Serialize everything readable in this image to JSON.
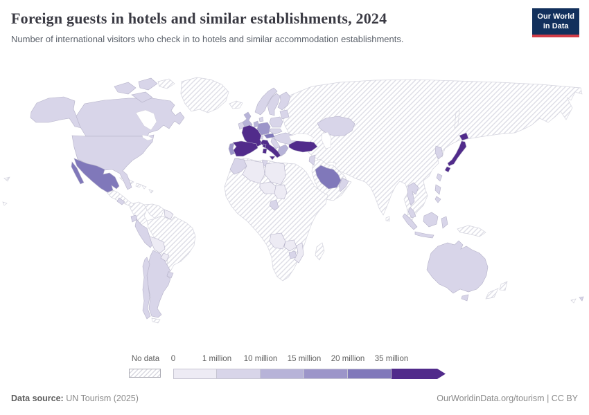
{
  "header": {
    "title": "Foreign guests in hotels and similar establishments, 2024",
    "subtitle": "Number of international visitors who check in to hotels and similar accommodation establishments.",
    "logo": {
      "line1": "Our World",
      "line2": "in Data",
      "bg_color": "#12305c",
      "accent_color": "#d23c47"
    }
  },
  "legend": {
    "no_data_label": "No data",
    "tick_labels": [
      "0",
      "1 million",
      "10 million",
      "15 million",
      "20 million",
      "35 million"
    ],
    "bin_colors": [
      "#edebf4",
      "#d8d5e9",
      "#b7b3d8",
      "#9c95c9",
      "#8078ba",
      "#512b8b"
    ],
    "no_data_pattern": "diagonal-hatch"
  },
  "footer": {
    "source_label": "Data source:",
    "source_value": "UN Tourism (2025)",
    "right_text": "OurWorldinData.org/tourism | CC BY"
  },
  "chart_data": {
    "type": "choropleth",
    "title": "Foreign guests in hotels and similar establishments, 2024",
    "unit": "international visitors checking in to hotels and similar establishments",
    "legend_position": "bottom",
    "bins": [
      {
        "label": "0-1 million",
        "color": "#edebf4"
      },
      {
        "label": "1-10 million",
        "color": "#d8d5e9"
      },
      {
        "label": "10-15 million",
        "color": "#b7b3d8"
      },
      {
        "label": "15-20 million",
        "color": "#9c95c9"
      },
      {
        "label": "20-35 million",
        "color": "#8078ba"
      },
      {
        "label": "35 million and over",
        "color": "#512b8b"
      },
      {
        "label": "No data",
        "color": "hatched"
      }
    ],
    "countries_by_bin": {
      "35_million_plus": [
        "Spain",
        "France",
        "Italy",
        "Turkey",
        "Japan"
      ],
      "20_to_35_million": [
        "Mexico",
        "Austria",
        "Saudi Arabia"
      ],
      "15_to_20_million": [
        "Germany",
        "Portugal"
      ],
      "10_to_15_million": [
        "United Kingdom",
        "Greece"
      ],
      "1_to_10_million": [
        "Canada",
        "United States",
        "Australia",
        "Argentina",
        "Chile",
        "Peru",
        "Ecuador",
        "Uruguay",
        "Kazakhstan",
        "Thailand",
        "Malaysia",
        "Indonesia",
        "South Korea",
        "Taiwan",
        "Philippines",
        "Morocco",
        "Tunisia",
        "Poland",
        "Norway",
        "Sweden",
        "Finland",
        "Denmark",
        "Ireland",
        "Netherlands",
        "Oman",
        "United Arab Emirates",
        "Cameroon",
        "Zimbabwe"
      ],
      "0_to_1_million": [
        "Bolivia",
        "Paraguay",
        "Algeria",
        "Libya",
        "Niger",
        "Chad",
        "Angola",
        "Zambia",
        "Mozambique",
        "Guyana"
      ],
      "no_data": [
        "Russia",
        "China",
        "India",
        "Brazil",
        "Greenland",
        "Iceland",
        "Iran",
        "Egypt",
        "South Africa",
        "Madagascar",
        "New Zealand",
        "Papua New Guinea",
        "Vietnam",
        "Mongolia",
        "Colombia",
        "Venezuela",
        "Cuba",
        "Yemen",
        "most of Africa"
      ]
    }
  }
}
